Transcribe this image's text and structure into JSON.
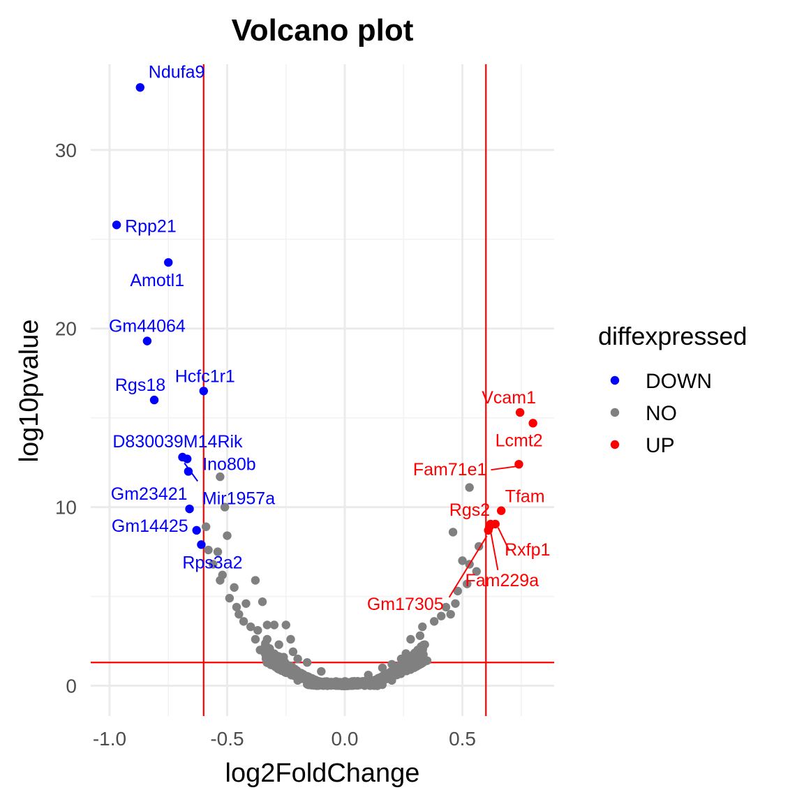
{
  "chart_data": {
    "type": "scatter",
    "title": "Volcano plot",
    "xlabel": "log2FoldChange",
    "ylabel": "log10pvalue",
    "xlim": [
      -1.08,
      0.89
    ],
    "ylim": [
      -1.7,
      34.8
    ],
    "x_ticks": [
      -1.0,
      -0.5,
      0.0,
      0.5
    ],
    "x_tick_labels": [
      "-1.0",
      "-0.5",
      "0.0",
      "0.5"
    ],
    "y_ticks": [
      0,
      10,
      20,
      30
    ],
    "y_tick_labels": [
      "0",
      "10",
      "20",
      "30"
    ],
    "grid": true,
    "thresholds": {
      "fold_change": [
        -0.6,
        0.6
      ],
      "log10pvalue": 1.3
    },
    "legend": {
      "title": "diffexpressed",
      "position": "right",
      "entries": [
        {
          "label": "DOWN",
          "color": "#0000ff"
        },
        {
          "label": "NO",
          "color": "#808080"
        },
        {
          "label": "UP",
          "color": "#ff0000"
        }
      ]
    },
    "colors": {
      "DOWN": "#0000ff",
      "NO": "#808080",
      "UP": "#ff0000",
      "threshold_line": "#ff0000"
    },
    "labeled_points": [
      {
        "gene": "Ndufa9",
        "x": -0.87,
        "y": 33.5,
        "group": "DOWN"
      },
      {
        "gene": "Rpp21",
        "x": -0.97,
        "y": 25.8,
        "group": "DOWN"
      },
      {
        "gene": "Amotl1",
        "x": -0.75,
        "y": 23.7,
        "group": "DOWN"
      },
      {
        "gene": "Gm44064",
        "x": -0.84,
        "y": 19.3,
        "group": "DOWN"
      },
      {
        "gene": "Rgs18",
        "x": -0.81,
        "y": 16.0,
        "group": "DOWN"
      },
      {
        "gene": "Hcfc1r1",
        "x": -0.6,
        "y": 16.5,
        "group": "DOWN"
      },
      {
        "gene": "D830039M14Rik",
        "x": -0.69,
        "y": 12.8,
        "group": "DOWN"
      },
      {
        "gene": "Ino80b",
        "x": -0.67,
        "y": 12.7,
        "group": "DOWN"
      },
      {
        "gene": "Mir1957a",
        "x": -0.665,
        "y": 12.0,
        "group": "DOWN"
      },
      {
        "gene": "Gm23421",
        "x": -0.66,
        "y": 9.9,
        "group": "DOWN"
      },
      {
        "gene": "Gm14425",
        "x": -0.63,
        "y": 8.7,
        "group": "DOWN"
      },
      {
        "gene": "Rps3a2",
        "x": -0.61,
        "y": 7.9,
        "group": "DOWN"
      },
      {
        "gene": "Vcam1",
        "x": 0.745,
        "y": 15.3,
        "group": "UP"
      },
      {
        "gene": "Lcmt2",
        "x": 0.8,
        "y": 14.7,
        "group": "UP"
      },
      {
        "gene": "Fam71e1",
        "x": 0.74,
        "y": 12.4,
        "group": "UP"
      },
      {
        "gene": "Tfam",
        "x": 0.665,
        "y": 9.8,
        "group": "UP"
      },
      {
        "gene": "Rgs2",
        "x": 0.62,
        "y": 9.05,
        "group": "UP"
      },
      {
        "gene": "Rxfp1",
        "x": 0.64,
        "y": 9.05,
        "group": "UP"
      },
      {
        "gene": "Fam229a",
        "x": 0.615,
        "y": 8.9,
        "group": "UP"
      },
      {
        "gene": "Gm17305",
        "x": 0.61,
        "y": 8.7,
        "group": "UP"
      }
    ],
    "unlabeled_points": {
      "NO": [
        [
          0.53,
          11.1
        ],
        [
          -0.53,
          11.7
        ],
        [
          -0.51,
          10.0
        ],
        [
          -0.59,
          8.9
        ],
        [
          -0.5,
          8.4
        ],
        [
          -0.58,
          7.6
        ],
        [
          -0.54,
          7.5
        ],
        [
          -0.56,
          6.8
        ],
        [
          -0.52,
          6.2
        ],
        [
          -0.53,
          5.9
        ],
        [
          -0.38,
          5.9
        ],
        [
          -0.47,
          5.5
        ],
        [
          -0.49,
          4.9
        ],
        [
          -0.42,
          4.6
        ],
        [
          -0.35,
          4.7
        ],
        [
          -0.46,
          4.4
        ],
        [
          -0.45,
          4.0
        ],
        [
          -0.43,
          3.6
        ],
        [
          -0.4,
          3.3
        ],
        [
          -0.37,
          3.1
        ],
        [
          -0.33,
          3.4
        ],
        [
          -0.3,
          3.4
        ],
        [
          -0.25,
          3.4
        ],
        [
          -0.38,
          2.6
        ],
        [
          -0.33,
          2.6
        ],
        [
          -0.36,
          2.0
        ],
        [
          -0.28,
          2.3
        ],
        [
          -0.32,
          1.6
        ],
        [
          -0.23,
          2.6
        ],
        [
          -0.29,
          1.3
        ],
        [
          -0.26,
          1.6
        ],
        [
          -0.22,
          1.9
        ],
        [
          -0.2,
          1.5
        ],
        [
          -0.16,
          1.3
        ],
        [
          -0.1,
          0.8
        ],
        [
          0.46,
          8.6
        ],
        [
          0.5,
          7.0
        ],
        [
          0.53,
          6.8
        ],
        [
          0.57,
          7.8
        ],
        [
          0.56,
          6.4
        ],
        [
          0.52,
          5.7
        ],
        [
          0.48,
          5.3
        ],
        [
          0.47,
          4.6
        ],
        [
          0.43,
          4.4
        ],
        [
          0.45,
          4.0
        ],
        [
          0.41,
          3.9
        ],
        [
          0.38,
          3.6
        ],
        [
          0.33,
          3.3
        ],
        [
          0.32,
          2.8
        ],
        [
          0.28,
          2.6
        ],
        [
          0.34,
          2.3
        ],
        [
          0.31,
          2.0
        ],
        [
          0.26,
          1.8
        ],
        [
          0.35,
          1.4
        ],
        [
          0.24,
          1.5
        ],
        [
          0.2,
          1.2
        ],
        [
          0.16,
          1.0
        ],
        [
          0.1,
          0.6
        ],
        [
          0.2,
          0.3
        ],
        [
          -0.2,
          0.3
        ]
      ]
    }
  }
}
